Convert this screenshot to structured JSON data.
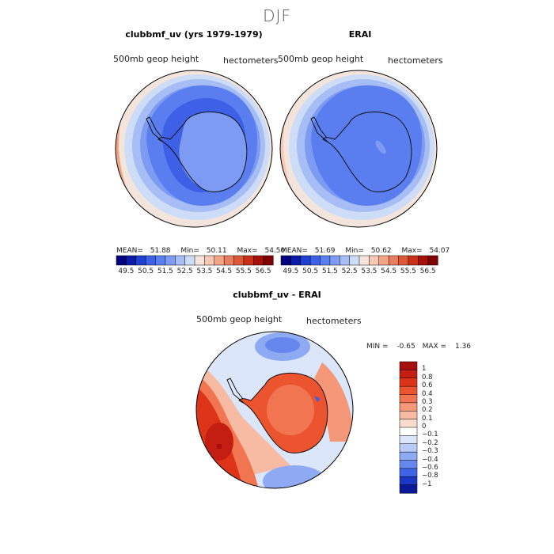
{
  "figure": {
    "title": "DJF",
    "panels": [
      {
        "title": "clubbmf_uv (yrs 1979-1979)",
        "variable": "500mb geop height",
        "units": "hectometers",
        "stats": {
          "mean_label": "MEAN=",
          "mean": "51.88",
          "min_label": "Min=",
          "min": "50.11",
          "max_label": "Max=",
          "max": "54.50"
        }
      },
      {
        "title": "ERAI",
        "variable": "500mb geop height",
        "units": "hectometers",
        "stats": {
          "mean_label": "MEAN=",
          "mean": "51.69",
          "min_label": "Min=",
          "min": "50.62",
          "max_label": "Max=",
          "max": "54.07"
        }
      },
      {
        "title": "clubbmf_uv - ERAI",
        "variable": "500mb geop height",
        "units": "hectometers",
        "stats": {
          "min_label": "MIN =",
          "min": "-0.65",
          "max_label": "MAX =",
          "max": "1.36"
        }
      }
    ]
  },
  "chart_data": [
    {
      "type": "heatmap",
      "projection": "south-polar-stereographic",
      "title": "clubbmf_uv (yrs 1979-1979)",
      "field": "500mb geop height",
      "units": "hectometers",
      "mean": 51.88,
      "min": 50.11,
      "max": 54.5,
      "colorbar_ticks": [
        "49.5",
        "50.5",
        "51.5",
        "52.5",
        "53.5",
        "54.5",
        "55.5",
        "56.5"
      ],
      "colorbar_colors": [
        "#000080",
        "#0a1ca8",
        "#1f3fd1",
        "#3d60e6",
        "#5a7ef0",
        "#7d9bf2",
        "#a6bdf5",
        "#cddcf7",
        "#f3e4dc",
        "#f7c9b4",
        "#f2a585",
        "#e97e5e",
        "#dd5738",
        "#c93019",
        "#a51108",
        "#800000"
      ]
    },
    {
      "type": "heatmap",
      "projection": "south-polar-stereographic",
      "title": "ERAI",
      "field": "500mb geop height",
      "units": "hectometers",
      "mean": 51.69,
      "min": 50.62,
      "max": 54.07,
      "colorbar_ticks": [
        "49.5",
        "50.5",
        "51.5",
        "52.5",
        "53.5",
        "54.5",
        "55.5",
        "56.5"
      ],
      "colorbar_colors": [
        "#000080",
        "#0a1ca8",
        "#1f3fd1",
        "#3d60e6",
        "#5a7ef0",
        "#7d9bf2",
        "#a6bdf5",
        "#cddcf7",
        "#f3e4dc",
        "#f7c9b4",
        "#f2a585",
        "#e97e5e",
        "#dd5738",
        "#c93019",
        "#a51108",
        "#800000"
      ]
    },
    {
      "type": "heatmap",
      "projection": "south-polar-stereographic",
      "title": "clubbmf_uv - ERAI",
      "field": "500mb geop height",
      "units": "hectometers",
      "min": -0.65,
      "max": 1.36,
      "colorbar_ticks": [
        "1",
        "0.8",
        "0.6",
        "0.4",
        "0.3",
        "0.2",
        "0.1",
        "0",
        "−0.1",
        "−0.2",
        "−0.3",
        "−0.4",
        "−0.6",
        "−0.8",
        "−1"
      ],
      "colorbar_colors": [
        "#a50f0f",
        "#c41e12",
        "#dd3419",
        "#ec5430",
        "#f27552",
        "#f5987a",
        "#f7baa3",
        "#f9dccd",
        "#ffffff",
        "#dbe6fb",
        "#b6cbf7",
        "#8eaaf2",
        "#6688ee",
        "#3f62e6",
        "#1c36c6",
        "#0a1898"
      ]
    }
  ]
}
